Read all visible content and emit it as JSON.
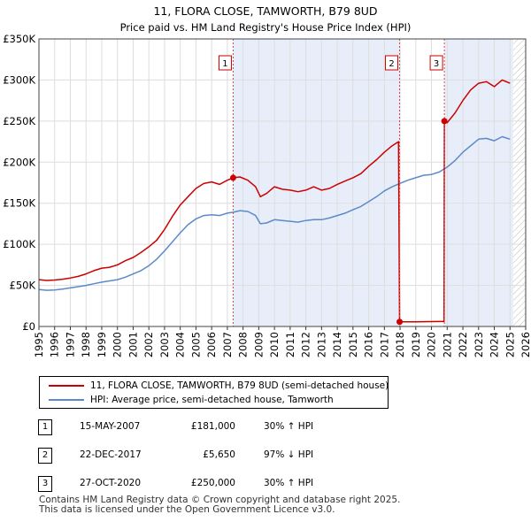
{
  "chart_data": {
    "type": "line",
    "title": "11, FLORA CLOSE, TAMWORTH, B79 8UD",
    "subtitle": "Price paid vs. HM Land Registry's House Price Index (HPI)",
    "xlabel": "",
    "ylabel": "",
    "xlim": [
      1995,
      2026
    ],
    "ylim": [
      0,
      350000
    ],
    "x_ticks": [
      "1995",
      "1996",
      "1997",
      "1998",
      "1999",
      "2000",
      "2001",
      "2002",
      "2003",
      "2004",
      "2005",
      "2006",
      "2007",
      "2008",
      "2009",
      "2010",
      "2011",
      "2012",
      "2013",
      "2014",
      "2015",
      "2016",
      "2017",
      "2018",
      "2019",
      "2020",
      "2021",
      "2022",
      "2023",
      "2024",
      "2025",
      "2026"
    ],
    "y_ticks": [
      {
        "value": 0,
        "label": "£0"
      },
      {
        "value": 50000,
        "label": "£50K"
      },
      {
        "value": 100000,
        "label": "£100K"
      },
      {
        "value": 150000,
        "label": "£150K"
      },
      {
        "value": 200000,
        "label": "£200K"
      },
      {
        "value": 250000,
        "label": "£250K"
      },
      {
        "value": 300000,
        "label": "£300K"
      },
      {
        "value": 350000,
        "label": "£350K"
      }
    ],
    "grid": true,
    "shaded_ranges": [
      {
        "from": 2007.37,
        "to": 2017.97
      },
      {
        "from": 2020.82,
        "to": 2025.2
      }
    ],
    "hatched_range": {
      "from": 2025.2,
      "to": 2026
    },
    "series": [
      {
        "name": "11, FLORA CLOSE, TAMWORTH, B79 8UD (semi-detached house)",
        "color": "#cc0000",
        "points": [
          [
            1995.0,
            57000
          ],
          [
            1995.5,
            56000
          ],
          [
            1996.0,
            56500
          ],
          [
            1996.5,
            57500
          ],
          [
            1997.0,
            59000
          ],
          [
            1997.5,
            61000
          ],
          [
            1998.0,
            64000
          ],
          [
            1998.5,
            68000
          ],
          [
            1999.0,
            71000
          ],
          [
            1999.5,
            72000
          ],
          [
            2000.0,
            75000
          ],
          [
            2000.5,
            80000
          ],
          [
            2001.0,
            84000
          ],
          [
            2001.5,
            90000
          ],
          [
            2002.0,
            97000
          ],
          [
            2002.5,
            105000
          ],
          [
            2003.0,
            118000
          ],
          [
            2003.5,
            134000
          ],
          [
            2004.0,
            148000
          ],
          [
            2004.5,
            158000
          ],
          [
            2005.0,
            168000
          ],
          [
            2005.5,
            174000
          ],
          [
            2006.0,
            176000
          ],
          [
            2006.5,
            173000
          ],
          [
            2007.0,
            178000
          ],
          [
            2007.37,
            181000
          ],
          [
            2007.8,
            182000
          ],
          [
            2008.3,
            178000
          ],
          [
            2008.8,
            170000
          ],
          [
            2009.1,
            158000
          ],
          [
            2009.5,
            162000
          ],
          [
            2010.0,
            170000
          ],
          [
            2010.5,
            167000
          ],
          [
            2011.0,
            166000
          ],
          [
            2011.5,
            164000
          ],
          [
            2012.0,
            166000
          ],
          [
            2012.5,
            170000
          ],
          [
            2013.0,
            166000
          ],
          [
            2013.5,
            168000
          ],
          [
            2014.0,
            173000
          ],
          [
            2014.5,
            177000
          ],
          [
            2015.0,
            181000
          ],
          [
            2015.5,
            186000
          ],
          [
            2016.0,
            195000
          ],
          [
            2016.5,
            203000
          ],
          [
            2017.0,
            212000
          ],
          [
            2017.5,
            220000
          ],
          [
            2017.9,
            225000
          ],
          [
            2017.97,
            5650
          ],
          [
            2018.5,
            5700
          ],
          [
            2019.0,
            5750
          ],
          [
            2019.5,
            5800
          ],
          [
            2020.0,
            5900
          ],
          [
            2020.5,
            6000
          ],
          [
            2020.8,
            6050
          ],
          [
            2020.82,
            250000
          ],
          [
            2021.0,
            248000
          ],
          [
            2021.5,
            260000
          ],
          [
            2022.0,
            275000
          ],
          [
            2022.5,
            288000
          ],
          [
            2023.0,
            296000
          ],
          [
            2023.5,
            298000
          ],
          [
            2024.0,
            292000
          ],
          [
            2024.5,
            300000
          ],
          [
            2025.0,
            296000
          ]
        ]
      },
      {
        "name": "HPI: Average price, semi-detached house, Tamworth",
        "color": "#5b8ac9",
        "points": [
          [
            1995.0,
            45000
          ],
          [
            1995.5,
            44000
          ],
          [
            1996.0,
            44500
          ],
          [
            1996.5,
            45500
          ],
          [
            1997.0,
            47000
          ],
          [
            1997.5,
            48500
          ],
          [
            1998.0,
            50000
          ],
          [
            1998.5,
            52000
          ],
          [
            1999.0,
            54000
          ],
          [
            1999.5,
            55500
          ],
          [
            2000.0,
            57000
          ],
          [
            2000.5,
            60000
          ],
          [
            2001.0,
            64000
          ],
          [
            2001.5,
            68000
          ],
          [
            2002.0,
            74000
          ],
          [
            2002.5,
            82000
          ],
          [
            2003.0,
            92000
          ],
          [
            2003.5,
            103000
          ],
          [
            2004.0,
            114000
          ],
          [
            2004.5,
            124000
          ],
          [
            2005.0,
            131000
          ],
          [
            2005.5,
            135000
          ],
          [
            2006.0,
            136000
          ],
          [
            2006.5,
            135000
          ],
          [
            2007.0,
            138000
          ],
          [
            2007.37,
            139000
          ],
          [
            2007.8,
            141000
          ],
          [
            2008.3,
            140000
          ],
          [
            2008.8,
            135000
          ],
          [
            2009.1,
            125000
          ],
          [
            2009.5,
            126000
          ],
          [
            2010.0,
            130000
          ],
          [
            2010.5,
            129000
          ],
          [
            2011.0,
            128000
          ],
          [
            2011.5,
            127000
          ],
          [
            2012.0,
            129000
          ],
          [
            2012.5,
            130000
          ],
          [
            2013.0,
            130000
          ],
          [
            2013.5,
            132000
          ],
          [
            2014.0,
            135000
          ],
          [
            2014.5,
            138000
          ],
          [
            2015.0,
            142000
          ],
          [
            2015.5,
            146000
          ],
          [
            2016.0,
            152000
          ],
          [
            2016.5,
            158000
          ],
          [
            2017.0,
            165000
          ],
          [
            2017.5,
            170000
          ],
          [
            2017.97,
            174000
          ],
          [
            2018.5,
            178000
          ],
          [
            2019.0,
            181000
          ],
          [
            2019.5,
            184000
          ],
          [
            2020.0,
            185000
          ],
          [
            2020.5,
            188000
          ],
          [
            2020.82,
            192000
          ],
          [
            2021.0,
            194000
          ],
          [
            2021.5,
            202000
          ],
          [
            2022.0,
            212000
          ],
          [
            2022.5,
            220000
          ],
          [
            2023.0,
            228000
          ],
          [
            2023.5,
            229000
          ],
          [
            2024.0,
            226000
          ],
          [
            2024.5,
            231000
          ],
          [
            2025.0,
            228000
          ]
        ]
      }
    ],
    "transactions": [
      {
        "label": "1",
        "x": 2007.37,
        "value": 181000
      },
      {
        "label": "2",
        "x": 2017.97,
        "value": 5650
      },
      {
        "label": "3",
        "x": 2020.82,
        "value": 250000
      }
    ]
  },
  "legend": [
    {
      "label": "11, FLORA CLOSE, TAMWORTH, B79 8UD (semi-detached house)",
      "color": "#cc0000"
    },
    {
      "label": "HPI: Average price, semi-detached house, Tamworth",
      "color": "#5b8ac9"
    }
  ],
  "table": [
    {
      "num": "1",
      "date": "15-MAY-2007",
      "price": "£181,000",
      "hpi": "30% ↑ HPI"
    },
    {
      "num": "2",
      "date": "22-DEC-2017",
      "price": "£5,650",
      "hpi": "97% ↓ HPI"
    },
    {
      "num": "3",
      "date": "27-OCT-2020",
      "price": "£250,000",
      "hpi": "30% ↑ HPI"
    }
  ],
  "footer": {
    "line1": "Contains HM Land Registry data © Crown copyright and database right 2025.",
    "line2": "This data is licensed under the Open Government Licence v3.0."
  }
}
